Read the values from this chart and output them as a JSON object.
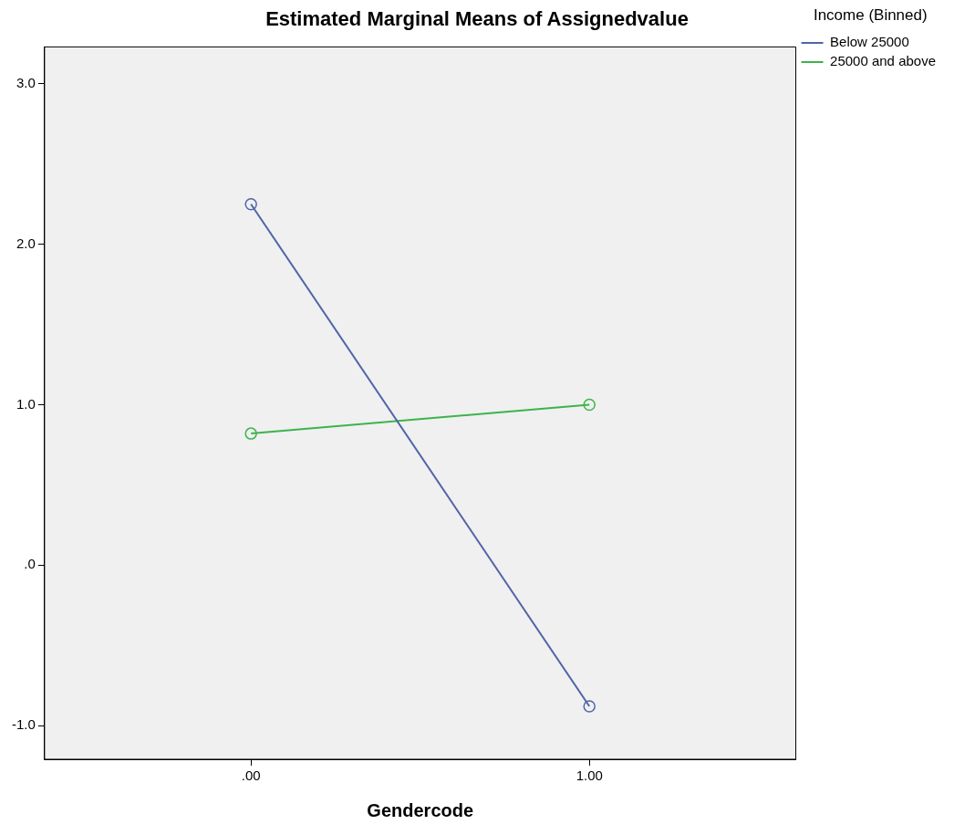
{
  "chart_data": {
    "type": "line",
    "title": "Estimated Marginal Means of Assignedvalue",
    "xlabel": "Gendercode",
    "legend_title": "Income (Binned)",
    "x": [
      0,
      1
    ],
    "series": [
      {
        "name": "Below 25000",
        "color": "#5065a8",
        "values": [
          2.25,
          -0.88
        ]
      },
      {
        "name": "25000 and above",
        "color": "#3cb44b",
        "values": [
          0.82,
          1.0
        ]
      }
    ],
    "xlim": [
      -0.61,
      1.61
    ],
    "xticks": [
      {
        "value": 0,
        "label": ".00"
      },
      {
        "value": 1,
        "label": "1.00"
      }
    ],
    "ylim": [
      -1.21,
      3.23
    ],
    "yticks": [
      {
        "value": -1,
        "label": "-1.0"
      },
      {
        "value": 0,
        "label": ".0"
      },
      {
        "value": 1,
        "label": "1.0"
      },
      {
        "value": 2,
        "label": "2.0"
      },
      {
        "value": 3,
        "label": "3.0"
      }
    ],
    "grid": false,
    "legend": "top right",
    "marker": "circle",
    "line_style": "solid"
  }
}
